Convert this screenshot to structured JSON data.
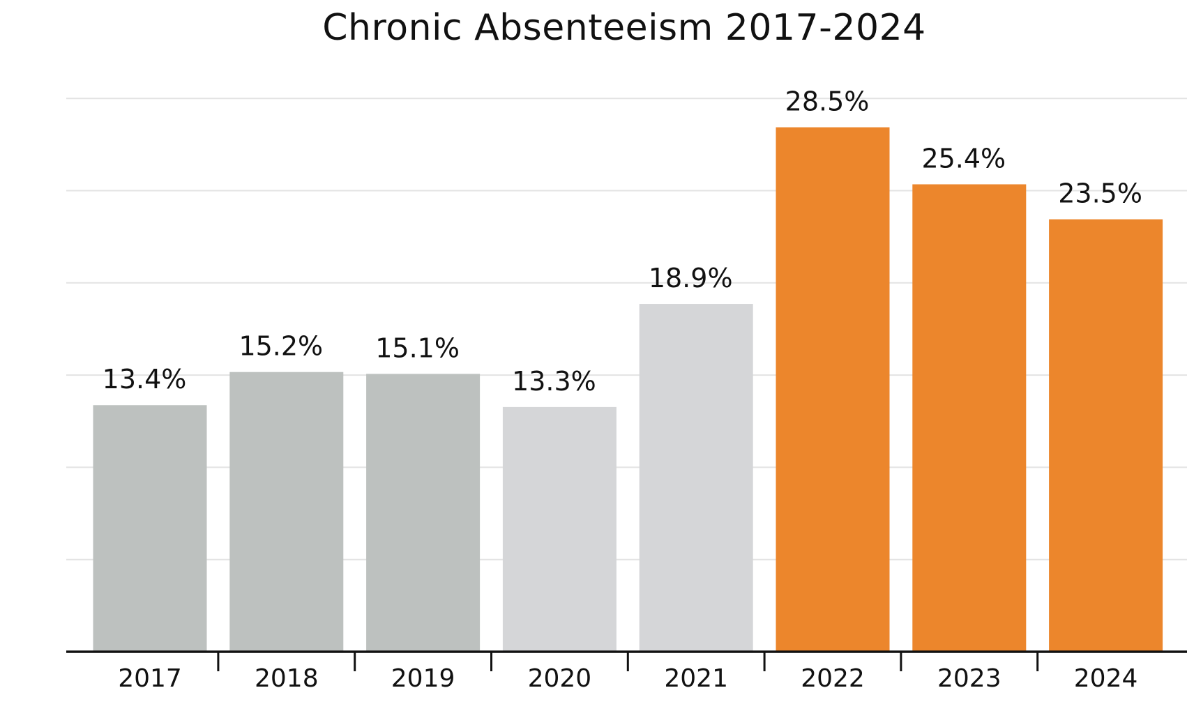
{
  "chart_data": {
    "type": "bar",
    "title": "Chronic Absenteeism 2017-2024",
    "xlabel": "",
    "ylabel": "",
    "categories": [
      "2017",
      "2018",
      "2019",
      "2020",
      "2021",
      "2022",
      "2023",
      "2024"
    ],
    "values": [
      13.4,
      15.2,
      15.1,
      13.3,
      18.9,
      28.5,
      25.4,
      23.5
    ],
    "value_labels": [
      "13.4%",
      "15.2%",
      "15.1%",
      "13.3%",
      "18.9%",
      "28.5%",
      "25.4%",
      "23.5%"
    ],
    "bar_colors": [
      "#bdc1bf",
      "#bdc1bf",
      "#bdc1bf",
      "#d5d6d8",
      "#d5d6d8",
      "#ec862c",
      "#ec862c",
      "#ec862c"
    ],
    "ylim": [
      0,
      30
    ],
    "grid": true,
    "gridline_color": "#e3e3e3"
  }
}
